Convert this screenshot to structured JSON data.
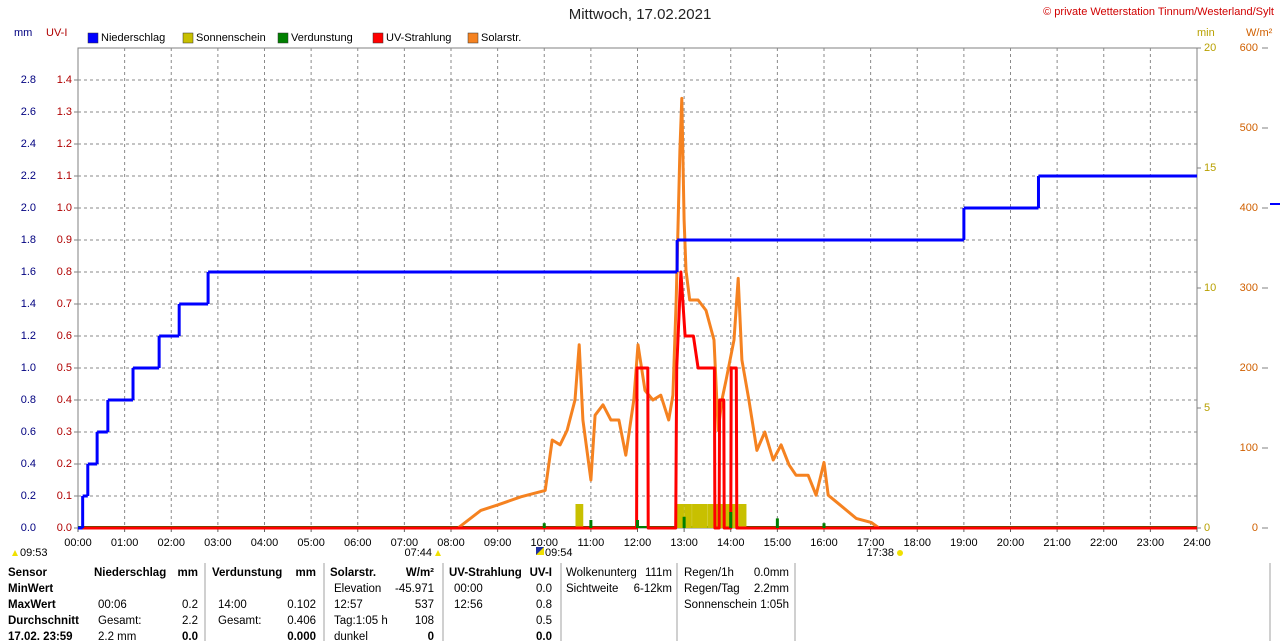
{
  "chart_data": {
    "type": "combo",
    "title": "Mittwoch, 17.02.2021",
    "copyright": "© private Wetterstation Tinnum/Westerland/Sylt",
    "ylabel": "mm",
    "y2label": "UV-I",
    "y3label": "min",
    "y4label": "W/m²",
    "xlim": [
      0,
      24
    ],
    "xticks": [
      {
        "value": 0,
        "label": "00:00"
      },
      {
        "value": 1,
        "label": "01:00"
      },
      {
        "value": 2,
        "label": "02:00"
      },
      {
        "value": 3,
        "label": "03:00"
      },
      {
        "value": 4,
        "label": "04:00"
      },
      {
        "value": 5,
        "label": "05:00"
      },
      {
        "value": 6,
        "label": "06:00"
      },
      {
        "value": 7,
        "label": "07:00"
      },
      {
        "value": 8,
        "label": "08:00"
      },
      {
        "value": 9,
        "label": "09:00"
      },
      {
        "value": 10,
        "label": "10:00"
      },
      {
        "value": 11,
        "label": "11:00"
      },
      {
        "value": 12,
        "label": "12:00"
      },
      {
        "value": 13,
        "label": "13:00"
      },
      {
        "value": 14,
        "label": "14:00"
      },
      {
        "value": 15,
        "label": "15:00"
      },
      {
        "value": 16,
        "label": "16:00"
      },
      {
        "value": 17,
        "label": "17:00"
      },
      {
        "value": 18,
        "label": "18:00"
      },
      {
        "value": 19,
        "label": "19:00"
      },
      {
        "value": 20,
        "label": "20:00"
      },
      {
        "value": 21,
        "label": "21:00"
      },
      {
        "value": 22,
        "label": "22:00"
      },
      {
        "value": 23,
        "label": "23:00"
      },
      {
        "value": 24,
        "label": "24:00"
      }
    ],
    "ylim": [
      0,
      3
    ],
    "yticks": [
      {
        "value": 0,
        "label": "0.0"
      },
      0.2,
      0.4,
      0.6,
      0.8,
      {
        "value": 1,
        "label": "1.0"
      },
      1.2,
      1.4,
      1.6,
      1.8,
      {
        "value": 2,
        "label": "2.0"
      },
      2.2,
      2.4,
      2.6,
      2.8
    ],
    "y2lim": [
      0,
      1.5
    ],
    "y2ticks": [
      {
        "value": 0,
        "label": "0.0"
      },
      0.1,
      0.2,
      0.3,
      0.4,
      0.5,
      0.6,
      0.7,
      0.8,
      0.9,
      {
        "value": 1,
        "label": "1.0"
      },
      1.1,
      1.2,
      1.3,
      1.4
    ],
    "y3lim": [
      0,
      20
    ],
    "y3ticks": [
      0,
      5,
      10,
      15,
      20
    ],
    "y4lim": [
      0,
      600
    ],
    "y4ticks": [
      0,
      100,
      200,
      300,
      400,
      500,
      600
    ],
    "grid": true,
    "series": [
      {
        "name": "Niederschlag",
        "color": "#0000ff",
        "type": "step",
        "axis": "y",
        "x": [
          0,
          0.1,
          0.21,
          0.41,
          0.64,
          1.18,
          1.74,
          2.17,
          2.79,
          12.85,
          19.0,
          20.6
        ],
        "values": [
          0,
          0.2,
          0.4,
          0.6,
          0.8,
          1.0,
          1.2,
          1.4,
          1.6,
          1.8,
          2.0,
          2.2
        ]
      },
      {
        "name": "Sonnenschein",
        "color": "#c8c000",
        "type": "bar",
        "axis": "y3",
        "x": [
          10.67,
          12.83,
          13.0,
          13.17,
          13.33,
          13.5,
          13.67,
          13.83,
          14.0,
          14.17
        ],
        "values": [
          1,
          1,
          1,
          1,
          1,
          1,
          1,
          1,
          1,
          1
        ]
      },
      {
        "name": "Verdunstung",
        "color": "#008000",
        "type": "bar",
        "axis": "y",
        "x": [
          10,
          11,
          12,
          13,
          14,
          15,
          16
        ],
        "values": [
          0.03,
          0.05,
          0.05,
          0.07,
          0.1,
          0.06,
          0.03
        ]
      },
      {
        "name": "UV-Strahlung",
        "color": "#ff0000",
        "type": "line",
        "axis": "y2",
        "x": [
          0,
          11.98,
          11.99,
          12.22,
          12.23,
          12.82,
          12.84,
          12.93,
          13.02,
          13.2,
          13.3,
          13.65,
          13.66,
          13.75,
          13.76,
          13.85,
          13.86,
          14.0,
          14.01,
          14.12,
          14.13,
          24
        ],
        "values": [
          0,
          0,
          0.5,
          0.5,
          0,
          0,
          0.5,
          0.8,
          0.6,
          0.6,
          0.5,
          0.5,
          0,
          0,
          0.4,
          0.4,
          0,
          0,
          0.5,
          0.5,
          0,
          0
        ]
      },
      {
        "name": "Solarstr.",
        "color": "#f58220",
        "type": "line",
        "axis": "y4",
        "x": [
          8.15,
          8.64,
          9.01,
          9.5,
          10.02,
          10.17,
          10.34,
          10.49,
          10.66,
          10.75,
          10.83,
          11.0,
          11.09,
          11.26,
          11.43,
          11.6,
          11.75,
          11.92,
          12.01,
          12.16,
          12.33,
          12.5,
          12.67,
          12.76,
          12.83,
          12.91,
          12.95,
          13.0,
          13.04,
          13.12,
          13.3,
          13.47,
          13.64,
          13.73,
          13.81,
          13.9,
          14.07,
          14.16,
          14.24,
          14.39,
          14.56,
          14.73,
          14.91,
          15.08,
          15.25,
          15.4,
          15.66,
          15.83,
          16.0,
          16.09,
          16.34,
          16.69,
          17.01,
          17.18
        ],
        "values": [
          0,
          22,
          29,
          39,
          47,
          110,
          104,
          122,
          160,
          229,
          135,
          60,
          141,
          154,
          135,
          135,
          91,
          160,
          229,
          172,
          160,
          166,
          135,
          166,
          285,
          472,
          537,
          385,
          322,
          285,
          285,
          272,
          235,
          122,
          160,
          185,
          235,
          312,
          210,
          160,
          97,
          120,
          85,
          104,
          79,
          66,
          66,
          41,
          82,
          41,
          29,
          12,
          7,
          0
        ]
      }
    ],
    "annotations": [
      "09:53",
      "07:44",
      "09:54",
      "17:38"
    ]
  },
  "stats": {
    "sensor_header": "Sensor",
    "row_names": [
      "MinWert",
      "MaxWert",
      "Durchschnitt",
      "17.02. 23:59"
    ],
    "columns": [
      {
        "header": "Niederschlag",
        "unit": "mm",
        "max": {
          "label": "00:06",
          "value": "0.2"
        },
        "avg": {
          "label": "Gesamt:",
          "value": "2.2"
        },
        "last": {
          "label": "2.2 mm",
          "value": "0.0"
        }
      },
      {
        "header": "Verdunstung",
        "unit": "mm",
        "max": {
          "label": "14:00",
          "value": "0.102"
        },
        "avg": {
          "label": "Gesamt:",
          "value": "0.406"
        },
        "last": {
          "value": "0.000"
        }
      },
      {
        "header": "Solarstr.",
        "unit": "W/m²",
        "min": {
          "label": "Elevation",
          "value": "-45.971"
        },
        "max": {
          "label": "12:57",
          "value": "537"
        },
        "avg": {
          "label": "Tag:1:05 h",
          "value": "108"
        },
        "last": {
          "label": "dunkel",
          "value": "0"
        }
      },
      {
        "header": "UV-Strahlung",
        "unit": "UV-I",
        "min": {
          "label": "00:00",
          "value": "0.0"
        },
        "max": {
          "label": "12:56",
          "value": "0.8"
        },
        "avg": {
          "value": "0.5"
        },
        "last": {
          "value": "0.0"
        }
      }
    ],
    "info": [
      [
        {
          "label": "Wolkenunterg",
          "value": "111m"
        },
        {
          "label": "Sichtweite",
          "value": "6-12km"
        }
      ],
      [
        {
          "label": "Regen/1h",
          "value": "0.0mm"
        },
        {
          "label": "Regen/Tag",
          "value": "2.2mm"
        },
        {
          "label": "Sonnenschein",
          "value": "1:05h"
        }
      ]
    ]
  }
}
